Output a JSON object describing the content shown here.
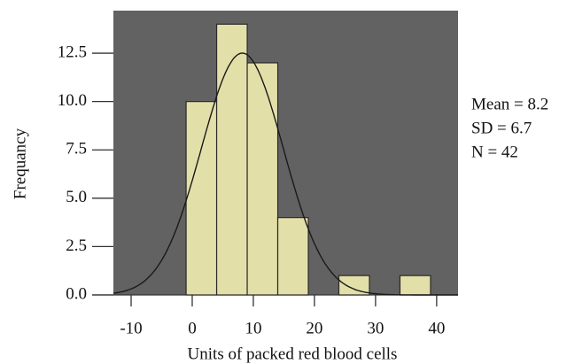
{
  "chart_data": {
    "type": "histogram",
    "x_label": "Units of packed red blood cells",
    "y_label": "Frequancy",
    "bins": [
      -1,
      4,
      9,
      14,
      19,
      24,
      29,
      34,
      39
    ],
    "values": [
      10,
      14,
      12,
      4,
      0,
      1,
      0,
      1
    ],
    "color": "#e3dfa8",
    "plot_background": "#626262",
    "curve_color": "#1a1a1a",
    "xlim": [
      -12.9,
      43.5
    ],
    "ylim": [
      0,
      14.7
    ],
    "xticks": [
      -10,
      0,
      10,
      20,
      30,
      40
    ],
    "yticks": [
      {
        "value": 0,
        "label": "0.0"
      },
      {
        "value": 2.5,
        "label": "2.5"
      },
      {
        "value": 5,
        "label": "5.0"
      },
      {
        "value": 7.5,
        "label": "7.5"
      },
      {
        "value": 10,
        "label": "10.0"
      },
      {
        "value": 12.5,
        "label": "12.5"
      }
    ],
    "stats": [
      {
        "label": "Mean = 8.2",
        "value": 8.2
      },
      {
        "label": "SD = 6.7",
        "value": 6.7
      },
      {
        "label": "N = 42",
        "value": 42
      }
    ]
  }
}
